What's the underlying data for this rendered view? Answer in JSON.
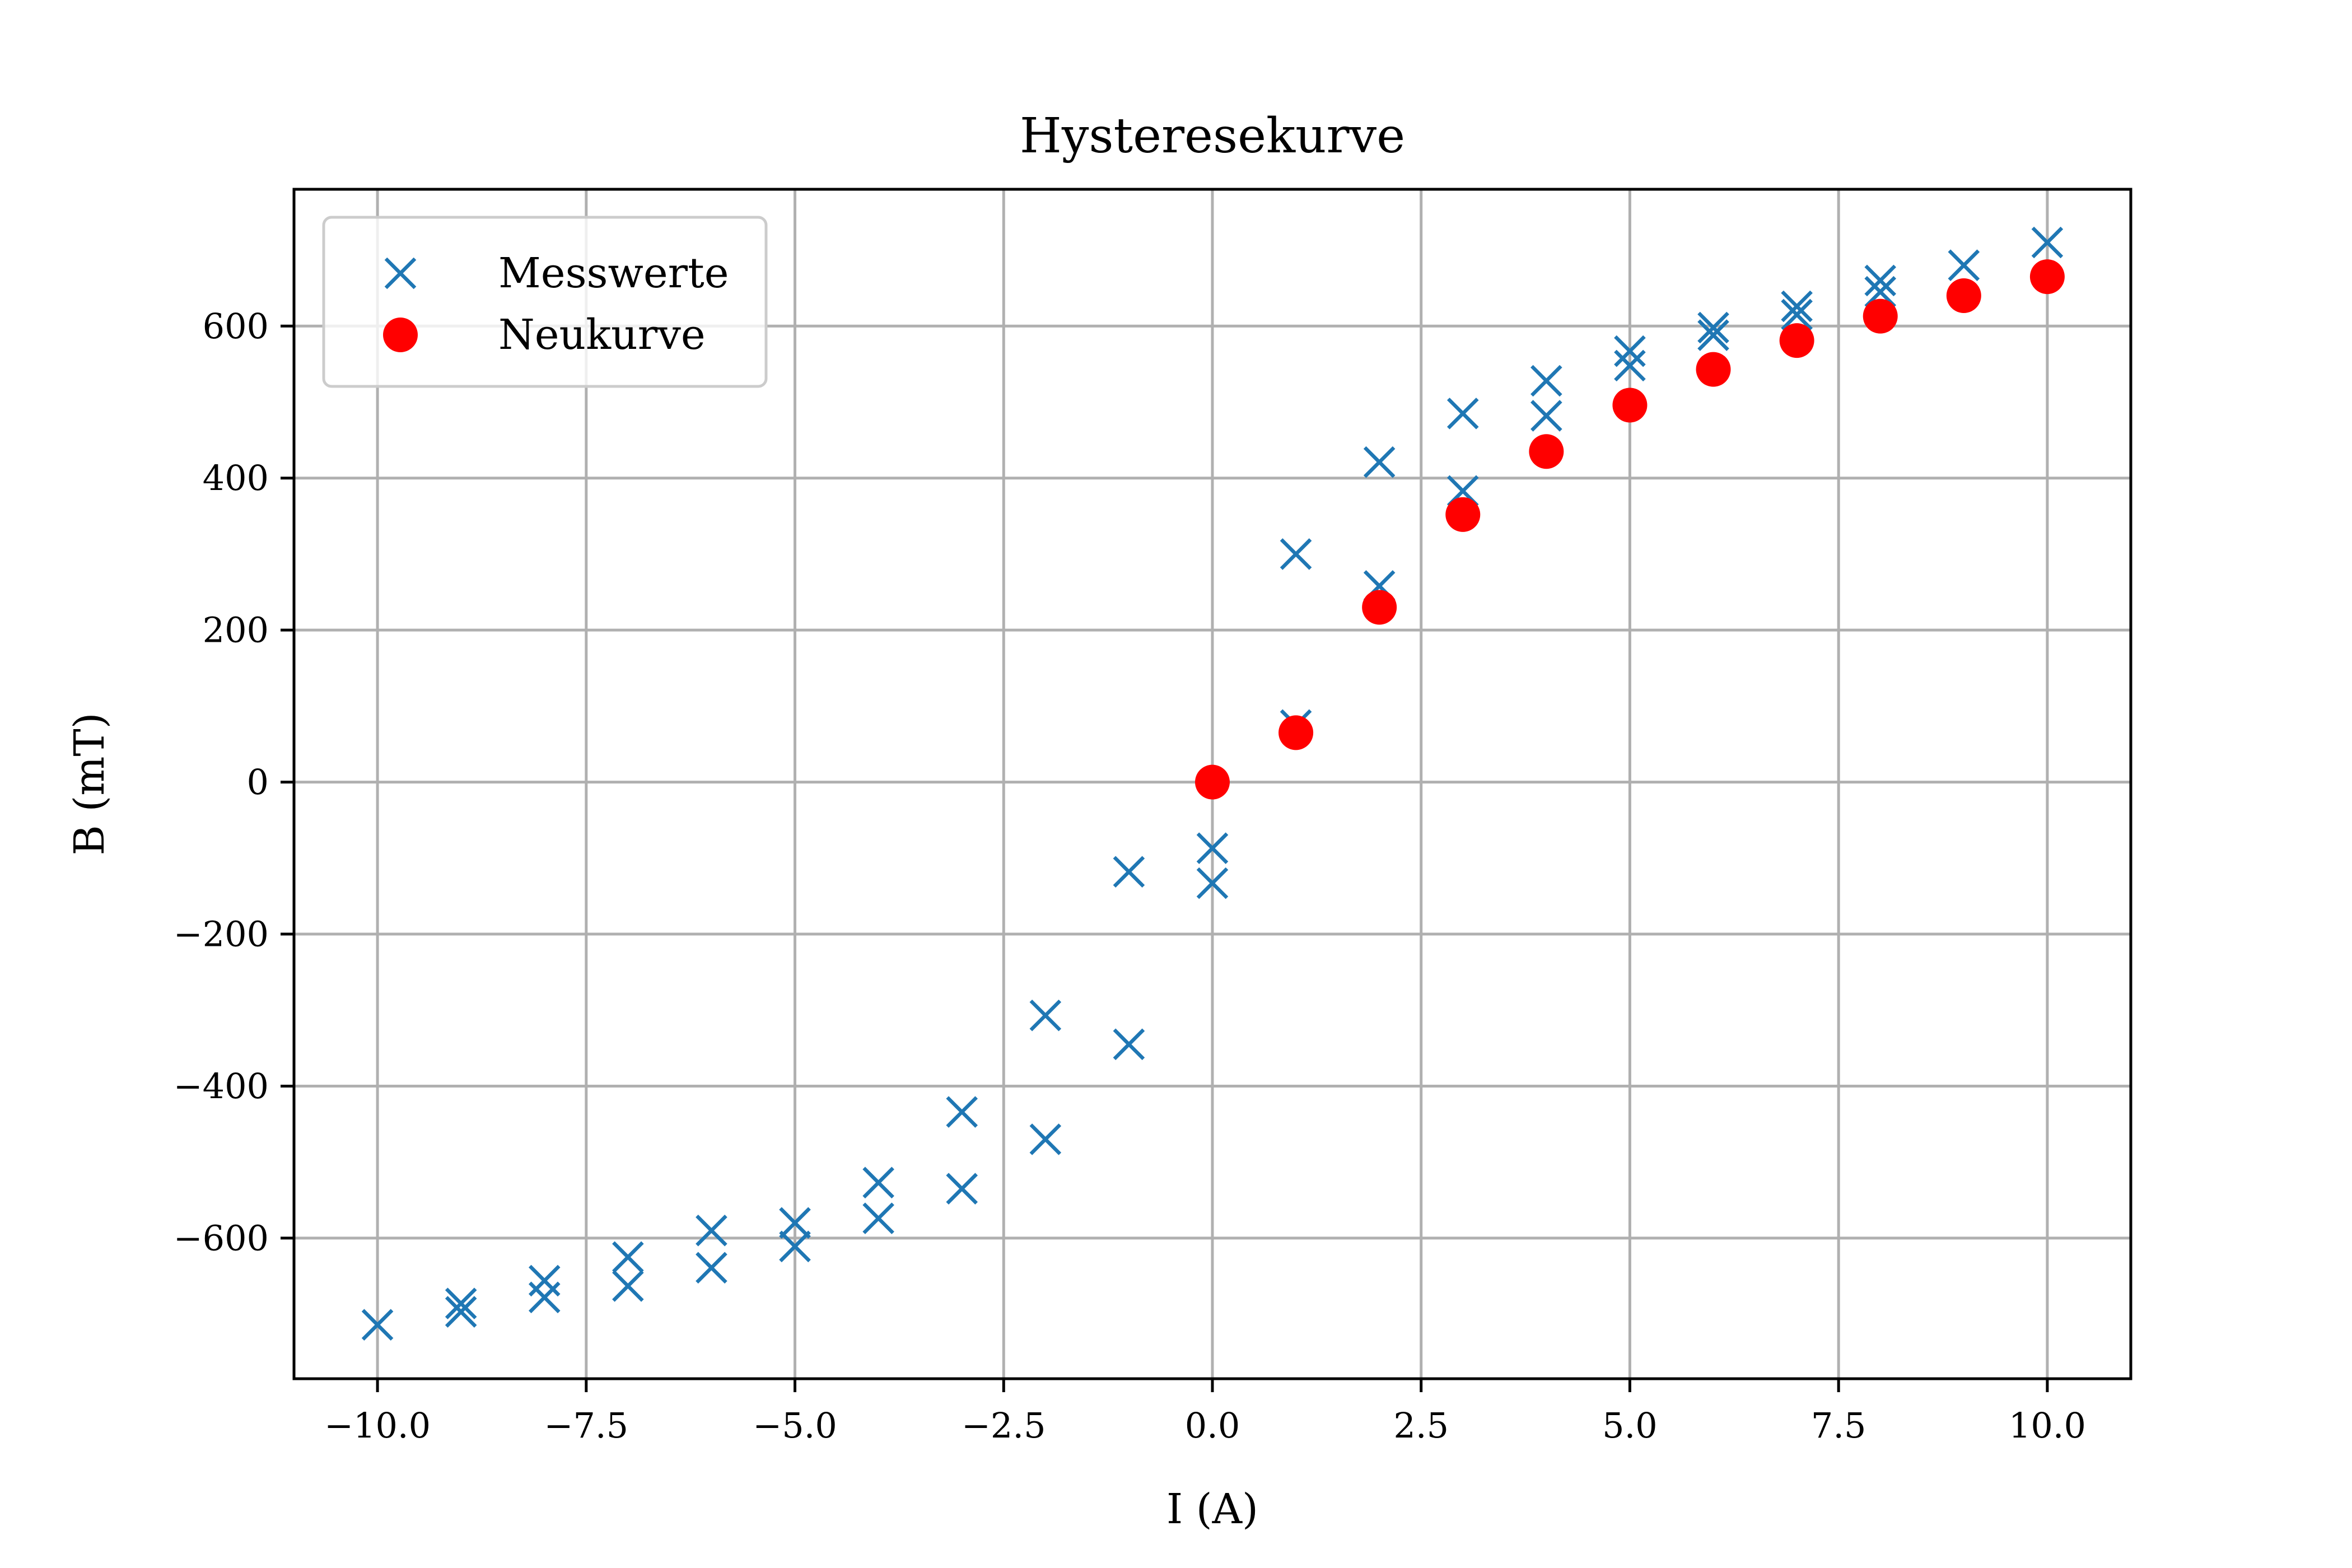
{
  "chart_data": {
    "type": "scatter",
    "title": "Hysteresekurve",
    "xlabel": "I (A)",
    "ylabel": "B (mT)",
    "xlim": [
      -11,
      11
    ],
    "ylim": [
      -785,
      780
    ],
    "xticks": [
      -10.0,
      -7.5,
      -5.0,
      -2.5,
      0.0,
      2.5,
      5.0,
      7.5,
      10.0
    ],
    "xtick_labels": [
      "−10.0",
      "−7.5",
      "−5.0",
      "−2.5",
      "0.0",
      "2.5",
      "5.0",
      "7.5",
      "10.0"
    ],
    "yticks": [
      -600,
      -400,
      -200,
      0,
      200,
      400,
      600
    ],
    "ytick_labels": [
      "−600",
      "−400",
      "−200",
      "0",
      "200",
      "400",
      "600"
    ],
    "grid": true,
    "legend_position": "top-left",
    "series": [
      {
        "name": "Messwerte",
        "marker": "x",
        "color": "#1f77b4",
        "points": [
          [
            -10,
            -714
          ],
          [
            -9,
            -697
          ],
          [
            -9,
            -686
          ],
          [
            -8,
            -678
          ],
          [
            -8,
            -656
          ],
          [
            -7,
            -663
          ],
          [
            -7,
            -625
          ],
          [
            -6,
            -639
          ],
          [
            -6,
            -590
          ],
          [
            -5,
            -611
          ],
          [
            -5,
            -580
          ],
          [
            -4,
            -574
          ],
          [
            -4,
            -527
          ],
          [
            -3,
            -535
          ],
          [
            -3,
            -434
          ],
          [
            -2,
            -470
          ],
          [
            -2,
            -307
          ],
          [
            -1,
            -345
          ],
          [
            -1,
            -118
          ],
          [
            0,
            -133
          ],
          [
            0,
            -87
          ],
          [
            1,
            75
          ],
          [
            1,
            300
          ],
          [
            2,
            258
          ],
          [
            2,
            421
          ],
          [
            3,
            383
          ],
          [
            3,
            485
          ],
          [
            4,
            482
          ],
          [
            4,
            528
          ],
          [
            5,
            548
          ],
          [
            5,
            567
          ],
          [
            6,
            588
          ],
          [
            6,
            598
          ],
          [
            7,
            615
          ],
          [
            7,
            626
          ],
          [
            8,
            645
          ],
          [
            8,
            660
          ],
          [
            9,
            680
          ],
          [
            10,
            710
          ]
        ]
      },
      {
        "name": "Neukurve",
        "marker": "o",
        "color": "#ff0000",
        "points": [
          [
            0,
            0
          ],
          [
            1,
            65
          ],
          [
            2,
            230
          ],
          [
            3,
            352
          ],
          [
            4,
            435
          ],
          [
            5,
            496
          ],
          [
            6,
            543
          ],
          [
            7,
            581
          ],
          [
            8,
            613
          ],
          [
            9,
            640
          ],
          [
            10,
            665
          ]
        ]
      }
    ]
  }
}
